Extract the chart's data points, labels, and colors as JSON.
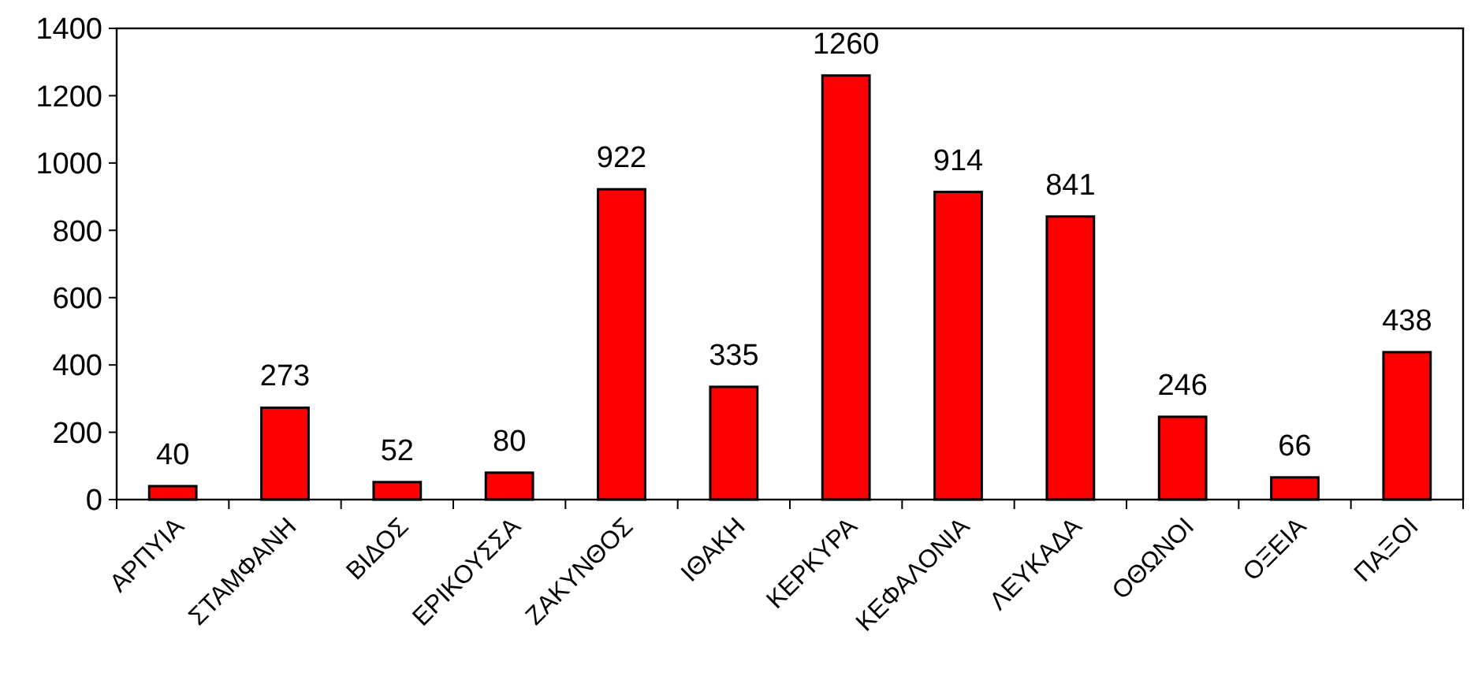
{
  "chart_data": {
    "type": "bar",
    "categories": [
      "ΑΡΠΥΙΑ",
      "ΣΤΑΜΦΑΝΗ",
      "ΒΙΔΟΣ",
      "ΕΡΙΚΟΥΣΣΑ",
      "ΖΑΚΥΝΘΟΣ",
      "ΙΘΑΚΗ",
      "ΚΕΡΚΥΡΑ",
      "ΚΕΦΑΛΟΝΙΑ",
      "ΛΕΥΚΑΔΑ",
      "ΟΘΩΝΟΙ",
      "ΟΞΕΙΑ",
      "ΠΑΞΟΙ"
    ],
    "values": [
      40,
      273,
      52,
      80,
      922,
      335,
      1260,
      914,
      841,
      246,
      66,
      438
    ],
    "color": "#ff0000",
    "ylim": [
      0,
      1400
    ],
    "yticks": [
      0,
      200,
      400,
      600,
      800,
      1000,
      1200,
      1400
    ],
    "data_labels": true,
    "grid": false
  }
}
